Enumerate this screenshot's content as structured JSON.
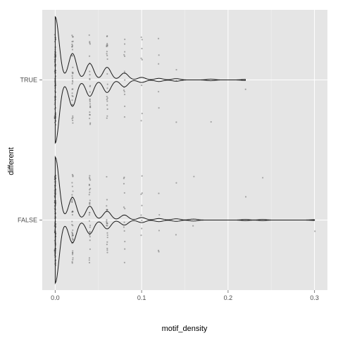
{
  "chart_data": {
    "type": "violin",
    "orientation": "horizontal",
    "xlabel": "motif_density",
    "ylabel": "different",
    "xlim": [
      -0.015,
      0.315
    ],
    "x_ticks": [
      "0.0",
      "0.1",
      "0.2",
      "0.3"
    ],
    "x_tick_values": [
      0,
      0.1,
      0.2,
      0.3
    ],
    "categories": [
      "FALSE",
      "TRUE"
    ],
    "grid": true,
    "background": "#e5e5e5",
    "grid_color": "#ffffff",
    "line_color": "#1a1a1a",
    "point_color": "#555555",
    "point_opacity": 0.45,
    "groups": [
      {
        "name": "TRUE",
        "max": 0.22,
        "density_peaks": [
          {
            "x": 0,
            "h": 1.0
          },
          {
            "x": 0.02,
            "h": 0.42
          },
          {
            "x": 0.04,
            "h": 0.26
          },
          {
            "x": 0.06,
            "h": 0.2
          },
          {
            "x": 0.08,
            "h": 0.11
          },
          {
            "x": 0.1,
            "h": 0.04
          },
          {
            "x": 0.12,
            "h": 0.025
          },
          {
            "x": 0.14,
            "h": 0.02
          },
          {
            "x": 0.18,
            "h": 0.012
          },
          {
            "x": 0.22,
            "h": 0.008
          }
        ],
        "points": [
          {
            "x": 0,
            "n": 90
          },
          {
            "x": 0.02,
            "n": 34
          },
          {
            "x": 0.04,
            "n": 26
          },
          {
            "x": 0.06,
            "n": 22
          },
          {
            "x": 0.08,
            "n": 14
          },
          {
            "x": 0.1,
            "n": 8
          },
          {
            "x": 0.12,
            "n": 5
          },
          {
            "x": 0.14,
            "n": 3
          },
          {
            "x": 0.18,
            "n": 1
          },
          {
            "x": 0.22,
            "n": 1
          }
        ]
      },
      {
        "name": "FALSE",
        "max": 0.3,
        "density_peaks": [
          {
            "x": 0,
            "h": 1.0
          },
          {
            "x": 0.02,
            "h": 0.36
          },
          {
            "x": 0.04,
            "h": 0.22
          },
          {
            "x": 0.06,
            "h": 0.14
          },
          {
            "x": 0.08,
            "h": 0.08
          },
          {
            "x": 0.1,
            "h": 0.04
          },
          {
            "x": 0.12,
            "h": 0.025
          },
          {
            "x": 0.14,
            "h": 0.02
          },
          {
            "x": 0.16,
            "h": 0.015
          },
          {
            "x": 0.22,
            "h": 0.008
          },
          {
            "x": 0.24,
            "h": 0.008
          },
          {
            "x": 0.3,
            "h": 0.006
          }
        ],
        "points": [
          {
            "x": 0,
            "n": 140
          },
          {
            "x": 0.02,
            "n": 40
          },
          {
            "x": 0.04,
            "n": 30
          },
          {
            "x": 0.06,
            "n": 22
          },
          {
            "x": 0.08,
            "n": 12
          },
          {
            "x": 0.1,
            "n": 8
          },
          {
            "x": 0.12,
            "n": 5
          },
          {
            "x": 0.14,
            "n": 2
          },
          {
            "x": 0.16,
            "n": 2
          },
          {
            "x": 0.22,
            "n": 1
          },
          {
            "x": 0.24,
            "n": 1
          },
          {
            "x": 0.3,
            "n": 1
          }
        ]
      }
    ]
  }
}
